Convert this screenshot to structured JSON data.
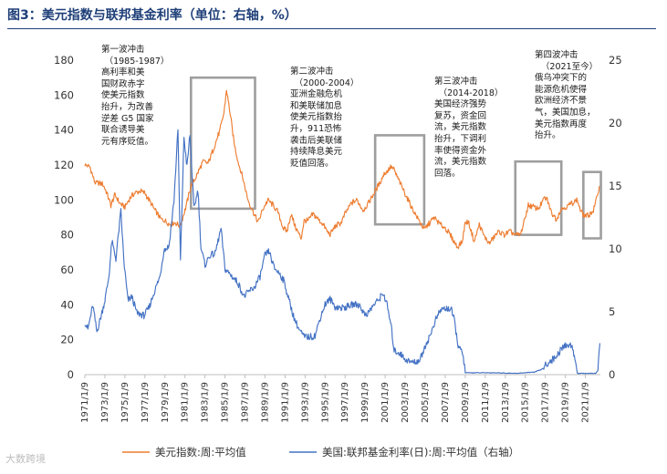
{
  "title": "图3：美元指数与联邦基金利率（单位：右轴，%）",
  "watermark": "大数跨境",
  "colors": {
    "usd": "#ED7D31",
    "ffr": "#4472C4",
    "box": "#9E9E9E",
    "title": "#1E3F78"
  },
  "chart_data": {
    "type": "line",
    "x_ticks": [
      "1971/1/9",
      "1973/1/9",
      "1975/1/9",
      "1977/1/9",
      "1979/1/9",
      "1981/1/9",
      "1983/1/9",
      "1985/1/9",
      "1987/1/9",
      "1989/1/9",
      "1991/1/9",
      "1993/1/9",
      "1995/1/9",
      "1997/1/9",
      "1999/1/9",
      "2001/1/9",
      "2003/1/9",
      "2005/1/9",
      "2007/1/9",
      "2009/1/9",
      "2011/1/9",
      "2013/1/9",
      "2015/1/9",
      "2017/1/9",
      "2019/1/9",
      "2021/1/9"
    ],
    "xlim": [
      1971.0,
      2022.5
    ],
    "ylim_left": [
      0,
      180
    ],
    "yticks_left": [
      0,
      20,
      40,
      60,
      80,
      100,
      120,
      140,
      160,
      180
    ],
    "ylim_right": [
      0,
      25
    ],
    "yticks_right": [
      0,
      5,
      10,
      15,
      20,
      25
    ],
    "grid": false,
    "legend_position": "bottom",
    "series": [
      {
        "name": "美元指数:周:平均值",
        "axis": "left",
        "points": [
          [
            1971.0,
            120
          ],
          [
            1971.5,
            119
          ],
          [
            1972.0,
            110
          ],
          [
            1972.8,
            109
          ],
          [
            1973.2,
            104
          ],
          [
            1973.6,
            97
          ],
          [
            1974.0,
            103
          ],
          [
            1974.5,
            98
          ],
          [
            1975.0,
            96
          ],
          [
            1975.5,
            101
          ],
          [
            1976.0,
            104
          ],
          [
            1976.5,
            105
          ],
          [
            1977.0,
            104
          ],
          [
            1977.5,
            99
          ],
          [
            1978.0,
            94
          ],
          [
            1978.6,
            89
          ],
          [
            1979.0,
            88
          ],
          [
            1979.5,
            86
          ],
          [
            1980.0,
            87
          ],
          [
            1980.5,
            85
          ],
          [
            1981.0,
            94
          ],
          [
            1981.6,
            108
          ],
          [
            1982.0,
            112
          ],
          [
            1982.8,
            122
          ],
          [
            1983.3,
            121
          ],
          [
            1983.9,
            130
          ],
          [
            1984.5,
            140
          ],
          [
            1984.9,
            150
          ],
          [
            1985.15,
            163
          ],
          [
            1985.5,
            150
          ],
          [
            1985.9,
            133
          ],
          [
            1986.3,
            122
          ],
          [
            1986.8,
            112
          ],
          [
            1987.3,
            100
          ],
          [
            1987.9,
            92
          ],
          [
            1988.3,
            87
          ],
          [
            1988.8,
            95
          ],
          [
            1989.3,
            100
          ],
          [
            1989.8,
            97
          ],
          [
            1990.3,
            93
          ],
          [
            1990.8,
            84
          ],
          [
            1991.2,
            82
          ],
          [
            1991.6,
            92
          ],
          [
            1992.0,
            85
          ],
          [
            1992.6,
            78
          ],
          [
            1992.9,
            88
          ],
          [
            1993.3,
            88
          ],
          [
            1993.8,
            92
          ],
          [
            1994.3,
            89
          ],
          [
            1994.8,
            86
          ],
          [
            1995.2,
            82
          ],
          [
            1995.5,
            80
          ],
          [
            1996.0,
            85
          ],
          [
            1996.6,
            87
          ],
          [
            1997.0,
            92
          ],
          [
            1997.6,
            98
          ],
          [
            1998.2,
            100
          ],
          [
            1998.8,
            94
          ],
          [
            1999.3,
            98
          ],
          [
            1999.8,
            103
          ],
          [
            2000.3,
            108
          ],
          [
            2000.9,
            115
          ],
          [
            2001.3,
            117
          ],
          [
            2001.6,
            119
          ],
          [
            2001.9,
            117
          ],
          [
            2002.3,
            112
          ],
          [
            2002.8,
            106
          ],
          [
            2003.3,
            100
          ],
          [
            2003.8,
            94
          ],
          [
            2004.3,
            89
          ],
          [
            2004.9,
            83
          ],
          [
            2005.3,
            86
          ],
          [
            2005.9,
            90
          ],
          [
            2006.5,
            86
          ],
          [
            2007.0,
            84
          ],
          [
            2007.6,
            79
          ],
          [
            2008.2,
            73
          ],
          [
            2008.7,
            76
          ],
          [
            2008.95,
            86
          ],
          [
            2009.3,
            88
          ],
          [
            2009.9,
            76
          ],
          [
            2010.4,
            86
          ],
          [
            2010.9,
            79
          ],
          [
            2011.4,
            75
          ],
          [
            2011.9,
            79
          ],
          [
            2012.4,
            82
          ],
          [
            2012.9,
            80
          ],
          [
            2013.5,
            82
          ],
          [
            2014.0,
            80
          ],
          [
            2014.5,
            80
          ],
          [
            2014.9,
            88
          ],
          [
            2015.3,
            97
          ],
          [
            2015.8,
            96
          ],
          [
            2016.3,
            95
          ],
          [
            2016.9,
            101
          ],
          [
            2017.2,
            100
          ],
          [
            2017.6,
            93
          ],
          [
            2018.1,
            89
          ],
          [
            2018.6,
            95
          ],
          [
            2019.1,
            96
          ],
          [
            2019.6,
            98
          ],
          [
            2020.2,
            100
          ],
          [
            2020.5,
            94
          ],
          [
            2020.9,
            91
          ],
          [
            2021.3,
            91
          ],
          [
            2021.8,
            94
          ],
          [
            2022.1,
            100
          ],
          [
            2022.4,
            108
          ]
        ]
      },
      {
        "name": "美国:联邦基金利率(日):周:平均值（右轴）",
        "axis": "right",
        "points": [
          [
            1971.0,
            4.2
          ],
          [
            1971.3,
            3.6
          ],
          [
            1971.8,
            5.5
          ],
          [
            1972.2,
            3.4
          ],
          [
            1972.6,
            4.6
          ],
          [
            1973.0,
            5.9
          ],
          [
            1973.4,
            7.8
          ],
          [
            1973.7,
            10.6
          ],
          [
            1974.1,
            9.2
          ],
          [
            1974.6,
            13.0
          ],
          [
            1974.9,
            9.0
          ],
          [
            1975.3,
            5.9
          ],
          [
            1975.7,
            6.2
          ],
          [
            1976.2,
            4.9
          ],
          [
            1976.9,
            4.7
          ],
          [
            1977.4,
            5.3
          ],
          [
            1977.9,
            6.5
          ],
          [
            1978.5,
            7.8
          ],
          [
            1978.9,
            9.9
          ],
          [
            1979.4,
            10.2
          ],
          [
            1979.9,
            13.8
          ],
          [
            1980.3,
            19.5
          ],
          [
            1980.55,
            9.0
          ],
          [
            1980.9,
            18.9
          ],
          [
            1981.2,
            16.5
          ],
          [
            1981.5,
            19.1
          ],
          [
            1981.9,
            13.2
          ],
          [
            1982.3,
            14.7
          ],
          [
            1982.6,
            10.1
          ],
          [
            1983.0,
            8.7
          ],
          [
            1983.5,
            9.5
          ],
          [
            1984.0,
            9.6
          ],
          [
            1984.6,
            11.6
          ],
          [
            1985.0,
            8.4
          ],
          [
            1985.6,
            7.9
          ],
          [
            1986.3,
            7.3
          ],
          [
            1986.9,
            6.2
          ],
          [
            1987.5,
            6.7
          ],
          [
            1987.9,
            6.9
          ],
          [
            1988.5,
            7.8
          ],
          [
            1989.0,
            9.5
          ],
          [
            1989.4,
            9.8
          ],
          [
            1989.9,
            8.5
          ],
          [
            1990.5,
            8.0
          ],
          [
            1990.9,
            7.4
          ],
          [
            1991.4,
            5.9
          ],
          [
            1991.9,
            4.5
          ],
          [
            1992.4,
            3.6
          ],
          [
            1992.9,
            3.0
          ],
          [
            1993.5,
            3.0
          ],
          [
            1994.0,
            3.1
          ],
          [
            1994.5,
            4.5
          ],
          [
            1995.0,
            5.6
          ],
          [
            1995.5,
            6.0
          ],
          [
            1996.0,
            5.4
          ],
          [
            1996.6,
            5.3
          ],
          [
            1997.2,
            5.4
          ],
          [
            1997.9,
            5.6
          ],
          [
            1998.5,
            5.5
          ],
          [
            1998.9,
            4.8
          ],
          [
            1999.3,
            4.9
          ],
          [
            1999.8,
            5.5
          ],
          [
            2000.3,
            5.9
          ],
          [
            2000.8,
            6.5
          ],
          [
            2001.2,
            5.5
          ],
          [
            2001.6,
            3.8
          ],
          [
            2001.9,
            1.9
          ],
          [
            2002.5,
            1.7
          ],
          [
            2002.9,
            1.3
          ],
          [
            2003.5,
            1.0
          ],
          [
            2004.0,
            1.0
          ],
          [
            2004.5,
            1.2
          ],
          [
            2005.0,
            2.3
          ],
          [
            2005.5,
            3.1
          ],
          [
            2006.0,
            4.3
          ],
          [
            2006.6,
            5.2
          ],
          [
            2007.2,
            5.25
          ],
          [
            2007.6,
            5.2
          ],
          [
            2007.9,
            4.3
          ],
          [
            2008.3,
            2.3
          ],
          [
            2008.8,
            1.5
          ],
          [
            2009.0,
            0.15
          ],
          [
            2010.0,
            0.15
          ],
          [
            2012.0,
            0.15
          ],
          [
            2014.0,
            0.1
          ],
          [
            2015.9,
            0.2
          ],
          [
            2016.6,
            0.4
          ],
          [
            2017.2,
            0.9
          ],
          [
            2017.9,
            1.3
          ],
          [
            2018.5,
            1.9
          ],
          [
            2018.9,
            2.3
          ],
          [
            2019.5,
            2.4
          ],
          [
            2019.9,
            1.6
          ],
          [
            2020.2,
            0.1
          ],
          [
            2021.0,
            0.1
          ],
          [
            2022.0,
            0.1
          ],
          [
            2022.25,
            0.3
          ],
          [
            2022.45,
            2.5
          ]
        ]
      }
    ],
    "annotations": [
      {
        "id": "wave1",
        "period_label": "（1985-1987）",
        "line1": "第一波冲击",
        "body": [
          "高利率和美",
          "国财政赤字",
          "使美元指数",
          "抬升，为改善",
          "逆差 G5 国家",
          "联合诱导美",
          "元有序贬值。"
        ],
        "box_x": [
          1981.6,
          1988.0
        ],
        "box_y": [
          95,
          170
        ]
      },
      {
        "id": "wave2",
        "period_label": "（2000-2004）",
        "line1": "第二波冲击",
        "body": [
          "亚洲金融危机",
          "和美联储加息",
          "使美元指数抬",
          "升，911恐怖",
          "袭击后美联储",
          "持续降息美元",
          "贬值回落。"
        ],
        "box_x": [
          2000.0,
          2004.9
        ],
        "box_y": [
          86,
          137
        ]
      },
      {
        "id": "wave3",
        "period_label": "（2014-2018）",
        "line1": "第三波冲击",
        "body": [
          "美国经济强势",
          "复苏，资金回",
          "流，美元指数",
          "抬升，下调利",
          "率使得资金外",
          "流，美元指数",
          "回落。"
        ],
        "box_x": [
          2014.0,
          2018.6
        ],
        "box_y": [
          80,
          122
        ]
      },
      {
        "id": "wave4",
        "period_label": "（2021至今）",
        "line1": "第四波冲击",
        "body": [
          "俄乌冲突下的",
          "能源危机使得",
          "欧洲经济不景",
          "气，美国加息，",
          "美元指数再度",
          "抬升。"
        ],
        "box_x": [
          2020.8,
          2022.55
        ],
        "box_y": [
          78,
          116
        ]
      }
    ]
  }
}
